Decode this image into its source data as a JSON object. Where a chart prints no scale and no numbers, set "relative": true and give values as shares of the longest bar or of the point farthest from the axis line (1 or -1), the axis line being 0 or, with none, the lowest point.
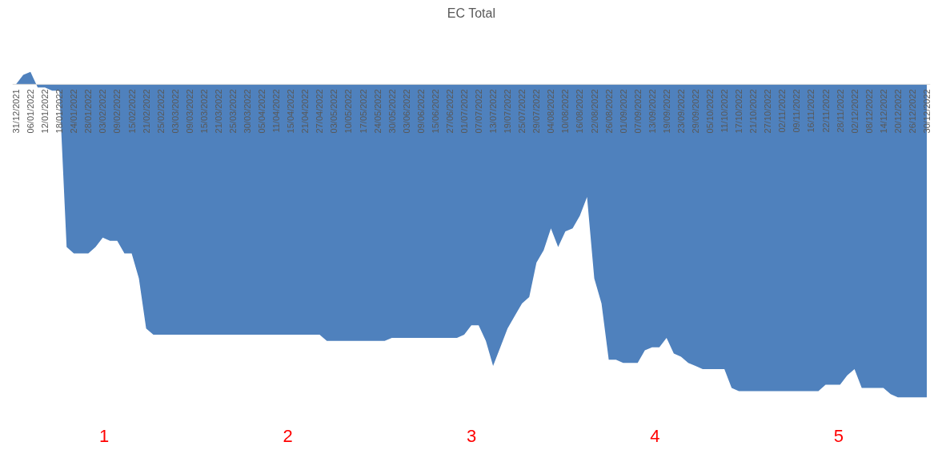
{
  "chart_data": {
    "type": "area",
    "title": "EC Total",
    "relative": true,
    "color": "#4f81bd",
    "categories": [
      "31/12/2021",
      null,
      "06/01/2022",
      null,
      "12/01/2022",
      null,
      "18/01/2022",
      null,
      "24/01/2022",
      null,
      "28/01/2022",
      null,
      "03/02/2022",
      null,
      "09/02/2022",
      null,
      "15/02/2022",
      null,
      "21/02/2022",
      null,
      "25/02/2022",
      null,
      "03/03/2022",
      null,
      "09/03/2022",
      null,
      "15/03/2022",
      null,
      "21/03/2022",
      null,
      "25/03/2022",
      null,
      "30/03/2022",
      null,
      "05/04/2022",
      null,
      "11/04/2022",
      null,
      "15/04/2022",
      null,
      "21/04/2022",
      null,
      "27/04/2022",
      null,
      "03/05/2022",
      null,
      "10/05/2022",
      null,
      "17/05/2022",
      null,
      "24/05/2022",
      null,
      "30/05/2022",
      null,
      "03/06/2022",
      null,
      "09/06/2022",
      null,
      "15/06/2022",
      null,
      "27/06/2022",
      null,
      "01/07/2022",
      null,
      "07/07/2022",
      null,
      "13/07/2022",
      null,
      "19/07/2022",
      null,
      "25/07/2022",
      null,
      "29/07/2022",
      null,
      "04/08/2022",
      null,
      "10/08/2022",
      null,
      "16/08/2022",
      null,
      "22/08/2022",
      null,
      "26/08/2022",
      null,
      "01/09/2022",
      null,
      "07/09/2022",
      null,
      "13/09/2022",
      null,
      "19/09/2022",
      null,
      "23/09/2022",
      null,
      "29/09/2022",
      null,
      "05/10/2022",
      null,
      "11/10/2022",
      null,
      "17/10/2022",
      null,
      "21/10/2022",
      null,
      "27/10/2022",
      null,
      "02/11/2022",
      null,
      "09/11/2022",
      null,
      "16/11/2022",
      null,
      "22/11/2022",
      null,
      "28/11/2022",
      null,
      "02/12/2022",
      null,
      "08/12/2022",
      null,
      "14/12/2022",
      null,
      "20/12/2022",
      null,
      "26/12/2022",
      null,
      "30/12/2022"
    ],
    "values": [
      0,
      0.03,
      0.04,
      -0.01,
      -0.01,
      -0.02,
      -0.02,
      -0.52,
      -0.54,
      -0.54,
      -0.54,
      -0.52,
      -0.49,
      -0.5,
      -0.5,
      -0.54,
      -0.54,
      -0.62,
      -0.78,
      -0.8,
      -0.8,
      -0.8,
      -0.8,
      -0.8,
      -0.8,
      -0.8,
      -0.8,
      -0.8,
      -0.8,
      -0.8,
      -0.8,
      -0.8,
      -0.8,
      -0.8,
      -0.8,
      -0.8,
      -0.8,
      -0.8,
      -0.8,
      -0.8,
      -0.8,
      -0.8,
      -0.8,
      -0.82,
      -0.82,
      -0.82,
      -0.82,
      -0.82,
      -0.82,
      -0.82,
      -0.82,
      -0.82,
      -0.81,
      -0.81,
      -0.81,
      -0.81,
      -0.81,
      -0.81,
      -0.81,
      -0.81,
      -0.81,
      -0.81,
      -0.8,
      -0.77,
      -0.77,
      -0.82,
      -0.9,
      -0.84,
      -0.78,
      -0.74,
      -0.7,
      -0.68,
      -0.57,
      -0.53,
      -0.46,
      -0.52,
      -0.47,
      -0.46,
      -0.42,
      -0.36,
      -0.62,
      -0.7,
      -0.88,
      -0.88,
      -0.89,
      -0.89,
      -0.89,
      -0.85,
      -0.84,
      -0.84,
      -0.81,
      -0.86,
      -0.87,
      -0.89,
      -0.9,
      -0.91,
      -0.91,
      -0.91,
      -0.91,
      -0.97,
      -0.98,
      -0.98,
      -0.98,
      -0.98,
      -0.98,
      -0.98,
      -0.98,
      -0.98,
      -0.98,
      -0.98,
      -0.98,
      -0.98,
      -0.96,
      -0.96,
      -0.96,
      -0.93,
      -0.91,
      -0.97,
      -0.97,
      -0.97,
      -0.97,
      -0.99,
      -1,
      -1,
      -1,
      -1,
      -1
    ],
    "annotations": [
      "1",
      "2",
      "3",
      "4",
      "5"
    ]
  }
}
